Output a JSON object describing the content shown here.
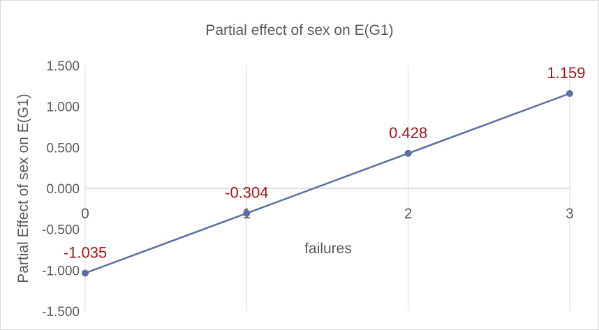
{
  "chart_data": {
    "type": "line",
    "title": "Partial effect of sex on E(G1)",
    "xlabel": "failures",
    "ylabel": "Partial Effect of sex on E(G1)",
    "x": [
      0,
      1,
      2,
      3
    ],
    "x_tick_labels": [
      "0",
      "1",
      "2",
      "3"
    ],
    "ylim": [
      -1.5,
      1.5
    ],
    "y_ticks": [
      1.5,
      1.0,
      0.5,
      0.0,
      -0.5,
      -1.0,
      -1.5
    ],
    "y_tick_labels": [
      "1.500",
      "1.000",
      "0.500",
      "0.000",
      "-0.500",
      "-1.000",
      "-1.500"
    ],
    "series": [
      {
        "values": [
          -1.035,
          -0.304,
          0.428,
          1.159
        ],
        "data_labels": [
          "-1.035",
          "-0.304",
          "0.428",
          "1.159"
        ],
        "color": "#5b6fa3"
      }
    ],
    "grid": "vertical",
    "legend": "none"
  }
}
